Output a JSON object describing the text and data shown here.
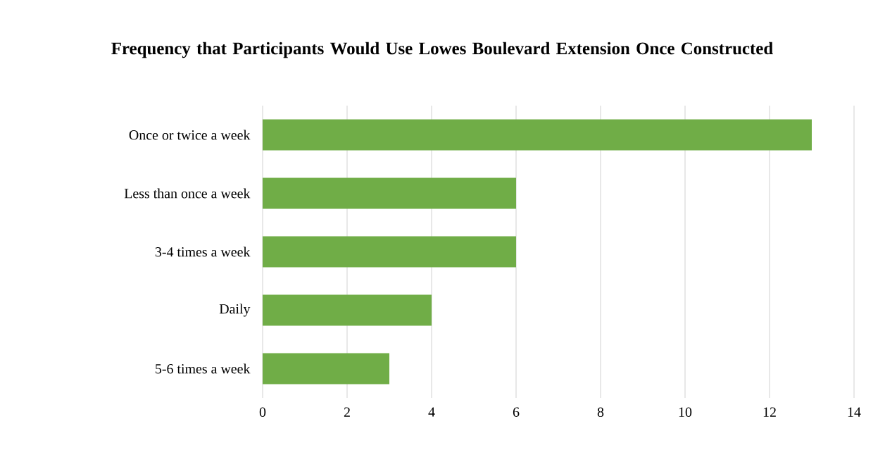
{
  "chart_data": {
    "type": "bar",
    "orientation": "horizontal",
    "title": "Frequency that Participants Would Use Lowes Boulevard Extension Once Constructed",
    "categories": [
      "Once or twice a week",
      "Less than once a week",
      "3-4 times a week",
      "Daily",
      "5-6 times a week"
    ],
    "values": [
      13,
      6,
      6,
      4,
      3
    ],
    "color": "#70ad47",
    "xlim": [
      0,
      14
    ],
    "xticks": [
      0,
      2,
      4,
      6,
      8,
      10,
      12,
      14
    ],
    "grid": "x"
  }
}
